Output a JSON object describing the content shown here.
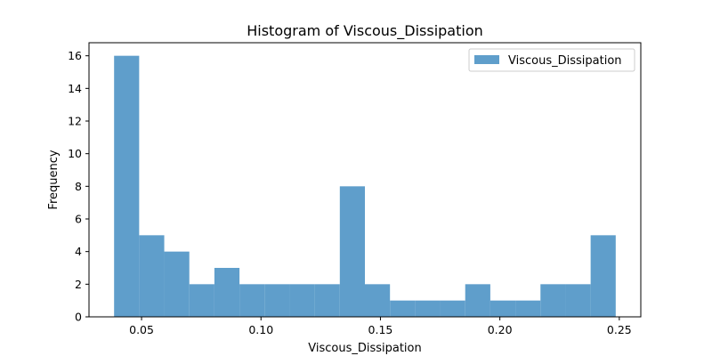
{
  "chart_data": {
    "type": "bar",
    "title": "Histogram of Viscous_Dissipation",
    "xlabel": "Viscous_Dissipation",
    "ylabel": "Frequency",
    "bin_edges": [
      0.0385,
      0.049,
      0.0595,
      0.07,
      0.0805,
      0.091,
      0.1015,
      0.112,
      0.1225,
      0.133,
      0.1435,
      0.154,
      0.1645,
      0.175,
      0.1855,
      0.196,
      0.2065,
      0.217,
      0.2275,
      0.238,
      0.2485
    ],
    "counts": [
      16,
      5,
      4,
      2,
      3,
      2,
      2,
      2,
      2,
      8,
      2,
      1,
      1,
      1,
      2,
      1,
      1,
      2,
      2,
      5
    ],
    "xlim": [
      0.028,
      0.259
    ],
    "ylim": [
      0,
      16.8
    ],
    "xticks": [
      0.05,
      0.1,
      0.15,
      0.2,
      0.25
    ],
    "xtick_labels": [
      "0.05",
      "0.10",
      "0.15",
      "0.20",
      "0.25"
    ],
    "yticks": [
      0,
      2,
      4,
      6,
      8,
      10,
      12,
      14,
      16
    ],
    "ytick_labels": [
      "0",
      "2",
      "4",
      "6",
      "8",
      "10",
      "12",
      "14",
      "16"
    ],
    "series": [
      {
        "name": "Viscous_Dissipation",
        "color": "#5f9ecb"
      }
    ],
    "legend": {
      "position": "top-right"
    },
    "grid": false
  }
}
